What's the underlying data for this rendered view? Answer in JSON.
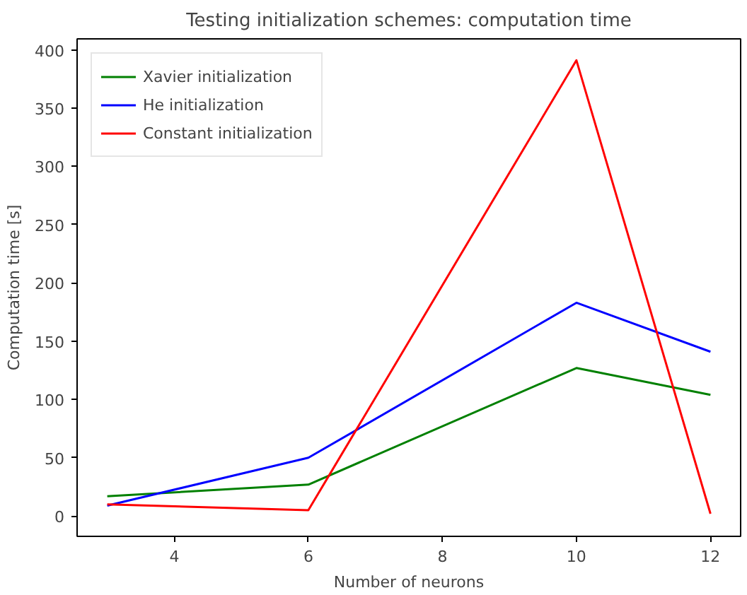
{
  "chart_data": {
    "type": "line",
    "title": "Testing initialization schemes: computation time",
    "xlabel": "Number of neurons",
    "ylabel": "Computation time [s]",
    "x": [
      3,
      6,
      10,
      12
    ],
    "series": [
      {
        "name": "Xavier initialization",
        "color": "#008000",
        "values": [
          17,
          27,
          127,
          104
        ]
      },
      {
        "name": "He initialization",
        "color": "#0000ff",
        "values": [
          9,
          50,
          183,
          141
        ]
      },
      {
        "name": "Constant initialization",
        "color": "#ff0000",
        "values": [
          10,
          5,
          391,
          2
        ]
      }
    ],
    "xlim": [
      2.55,
      12.45
    ],
    "ylim": [
      -17.4,
      409.4
    ],
    "xticks": [
      4,
      6,
      8,
      10,
      12
    ],
    "yticks": [
      0,
      50,
      100,
      150,
      200,
      250,
      300,
      350,
      400
    ],
    "grid": false,
    "legend": "top left",
    "marker": "none",
    "line_style": "solid"
  }
}
